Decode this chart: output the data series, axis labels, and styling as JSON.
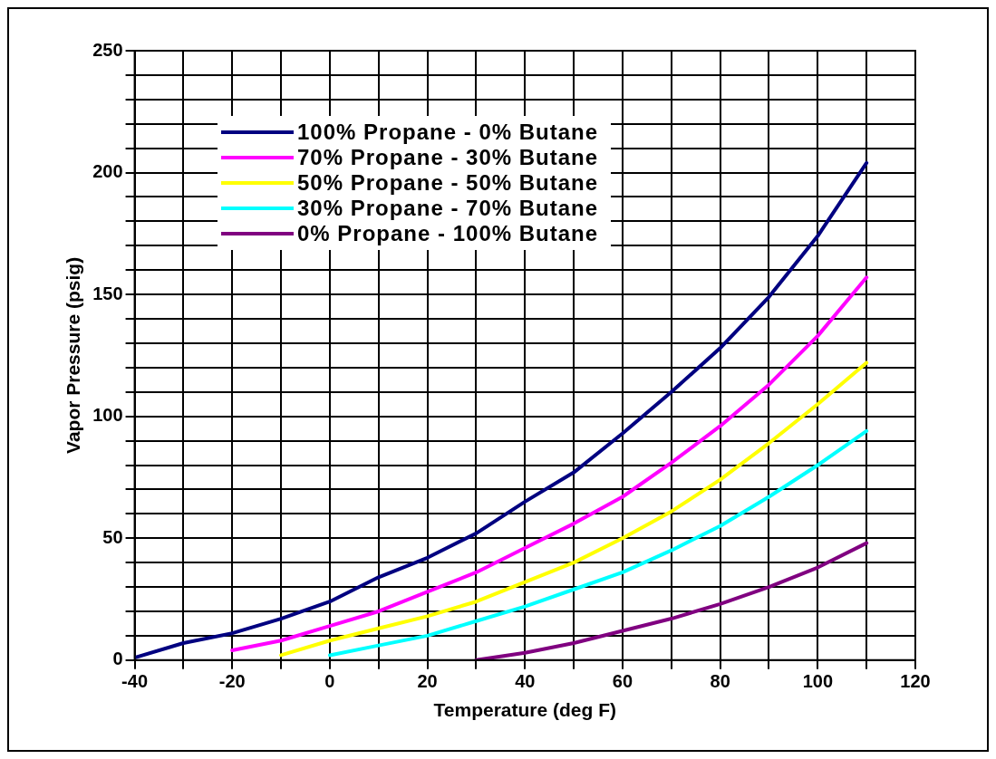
{
  "chart_data": {
    "type": "line",
    "xlabel": "Temperature (deg F)",
    "ylabel": "Vapor Pressure (psig)",
    "xlim": [
      -40,
      120
    ],
    "xticks": [
      -40,
      {
        "value": -30,
        "label": null
      },
      -20,
      {
        "value": -10,
        "label": null
      },
      0,
      {
        "value": 10,
        "label": null
      },
      20,
      {
        "value": 30,
        "label": null
      },
      40,
      {
        "value": 50,
        "label": null
      },
      60,
      {
        "value": 70,
        "label": null
      },
      80,
      {
        "value": 90,
        "label": null
      },
      100,
      {
        "value": 110,
        "label": null
      },
      120
    ],
    "ylim": [
      0,
      250
    ],
    "yticks": [
      0,
      {
        "value": 10,
        "label": null
      },
      {
        "value": 20,
        "label": null
      },
      {
        "value": 30,
        "label": null
      },
      {
        "value": 40,
        "label": null
      },
      50,
      {
        "value": 60,
        "label": null
      },
      {
        "value": 70,
        "label": null
      },
      {
        "value": 80,
        "label": null
      },
      {
        "value": 90,
        "label": null
      },
      100,
      {
        "value": 110,
        "label": null
      },
      {
        "value": 120,
        "label": null
      },
      {
        "value": 130,
        "label": null
      },
      {
        "value": 140,
        "label": null
      },
      150,
      {
        "value": 160,
        "label": null
      },
      {
        "value": 170,
        "label": null
      },
      {
        "value": 180,
        "label": null
      },
      {
        "value": 190,
        "label": null
      },
      200,
      {
        "value": 210,
        "label": null
      },
      {
        "value": 220,
        "label": null
      },
      {
        "value": 230,
        "label": null
      },
      {
        "value": 240,
        "label": null
      },
      250
    ],
    "grid": true,
    "legend": "top left",
    "marker": "none",
    "line_style": "solid",
    "series": [
      {
        "name": "100% Propane - 0% Butane",
        "color": "#000080",
        "x": [
          -40,
          -30,
          -20,
          -10,
          0,
          10,
          20,
          30,
          40,
          50,
          60,
          70,
          80,
          90,
          100,
          110
        ],
        "values": [
          1,
          7,
          11,
          17,
          24,
          34,
          42,
          52,
          65,
          77,
          93,
          110,
          128,
          149,
          174,
          204
        ]
      },
      {
        "name": "70% Propane - 30% Butane",
        "color": "#ff00ff",
        "x": [
          -20,
          -10,
          0,
          10,
          20,
          30,
          40,
          50,
          60,
          70,
          80,
          90,
          100,
          110
        ],
        "values": [
          4,
          8,
          14,
          20,
          28,
          36,
          46,
          56,
          67,
          81,
          96,
          113,
          133,
          157
        ]
      },
      {
        "name": "50% Propane - 50% Butane",
        "color": "#ffff00",
        "x": [
          -10,
          0,
          10,
          20,
          30,
          40,
          50,
          60,
          70,
          80,
          90,
          100,
          110
        ],
        "values": [
          2,
          8,
          13,
          18,
          24,
          32,
          40,
          50,
          61,
          74,
          89,
          105,
          122
        ]
      },
      {
        "name": "30% Propane - 70% Butane",
        "color": "#00ffff",
        "x": [
          0,
          10,
          20,
          30,
          40,
          50,
          60,
          70,
          80,
          90,
          100,
          110
        ],
        "values": [
          2,
          6,
          10,
          16,
          22,
          29,
          36,
          45,
          55,
          67,
          80,
          94
        ]
      },
      {
        "name": "0% Propane - 100% Butane",
        "color": "#800080",
        "x": [
          30,
          40,
          50,
          60,
          70,
          80,
          90,
          100,
          110
        ],
        "values": [
          0,
          3,
          7,
          null,
          17,
          23,
          30,
          38,
          48
        ]
      }
    ]
  }
}
